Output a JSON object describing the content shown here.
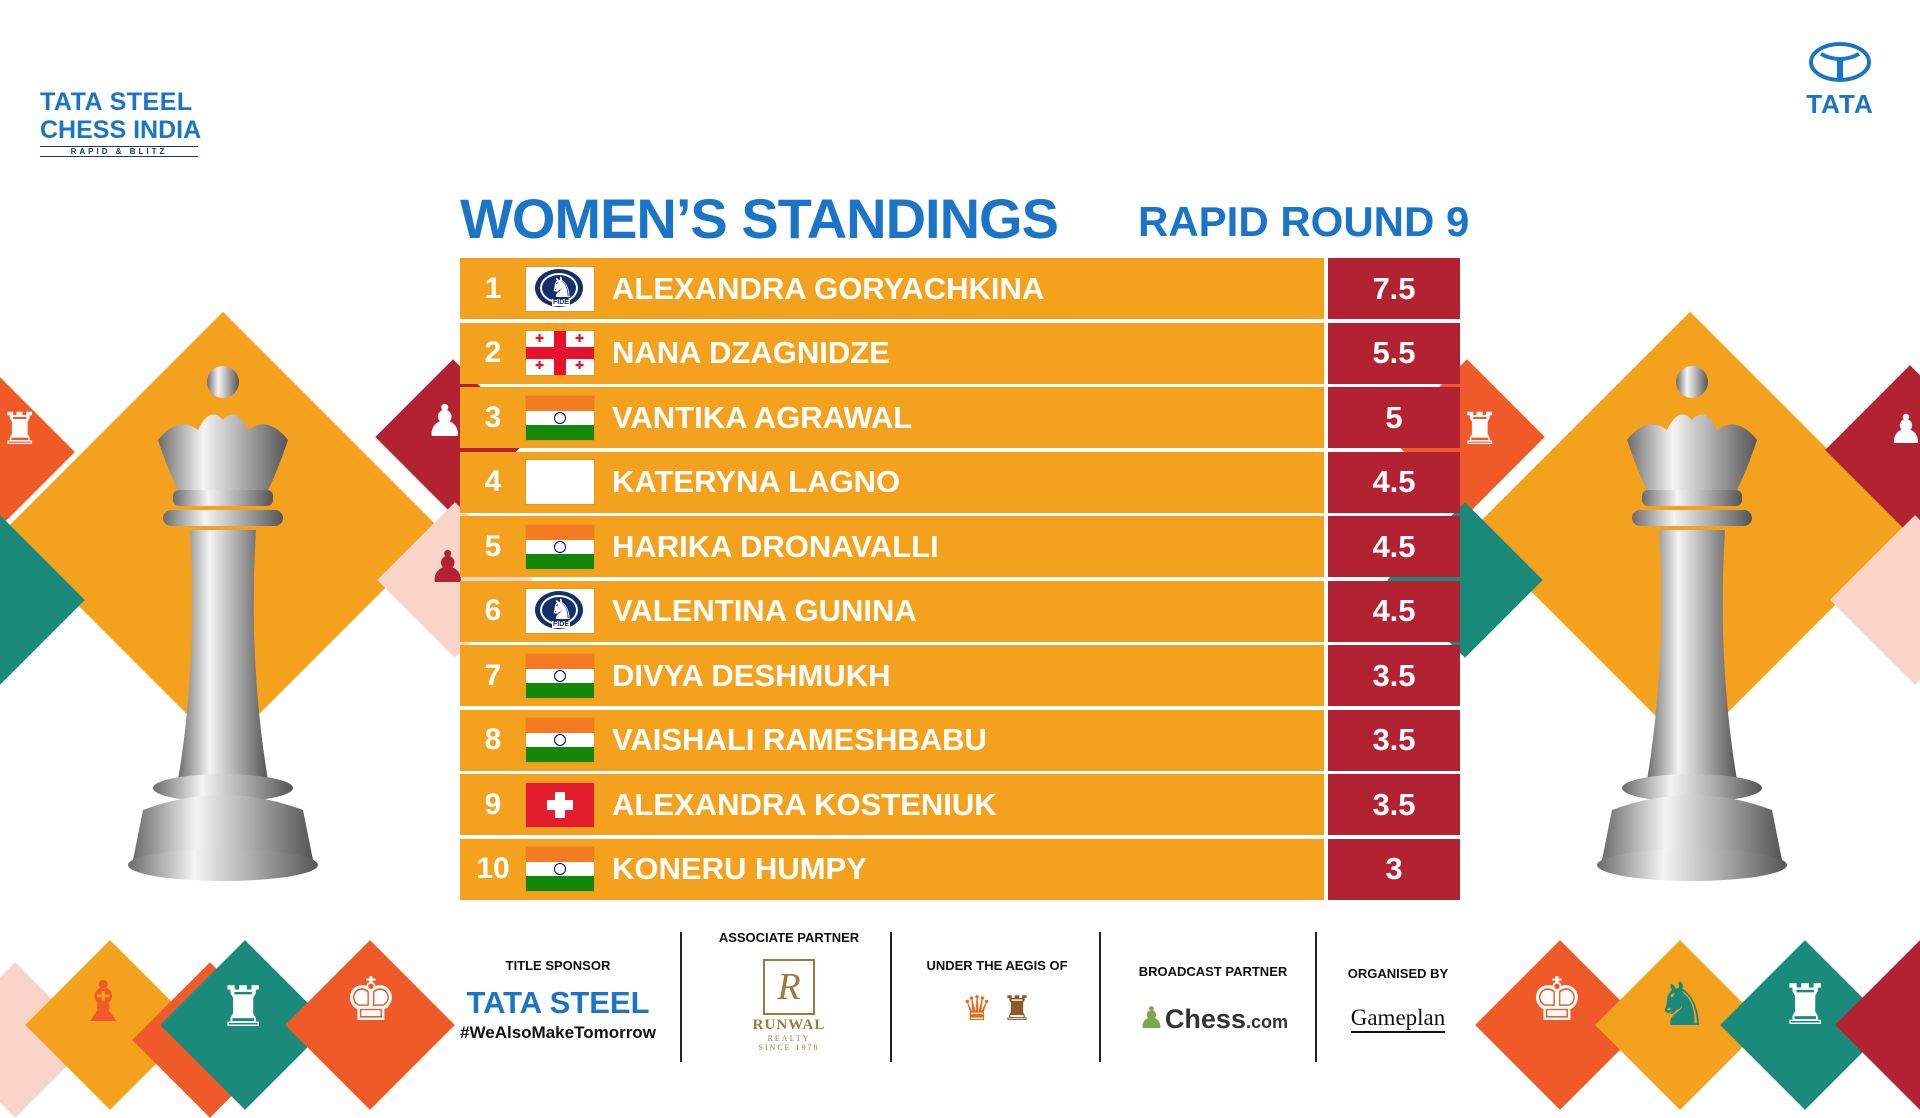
{
  "event_logo": {
    "line1": "TATA STEEL",
    "line2": "CHESS INDIA",
    "line3": "RAPID & BLITZ"
  },
  "tata_logo": {
    "word": "TATA"
  },
  "header": {
    "title": "WOMEN’S STANDINGS",
    "round": "RAPID ROUND 9"
  },
  "colors": {
    "blue": "#1a75c9",
    "row_orange": "#f4a21e",
    "score_red": "#b22232"
  },
  "standings": [
    {
      "rank": "1",
      "flag": "fide-icon",
      "name": "ALEXANDRA GORYACHKINA",
      "score": "7.5"
    },
    {
      "rank": "2",
      "flag": "georgia-flag-icon",
      "name": "NANA DZAGNIDZE",
      "score": "5.5"
    },
    {
      "rank": "3",
      "flag": "india-flag-icon",
      "name": "VANTIKA AGRAWAL",
      "score": "5"
    },
    {
      "rank": "4",
      "flag": "blank-flag-icon",
      "name": "KATERYNA LAGNO",
      "score": "4.5"
    },
    {
      "rank": "5",
      "flag": "india-flag-icon",
      "name": "HARIKA DRONAVALLI",
      "score": "4.5"
    },
    {
      "rank": "6",
      "flag": "fide-icon",
      "name": "VALENTINA GUNINA",
      "score": "4.5"
    },
    {
      "rank": "7",
      "flag": "india-flag-icon",
      "name": "DIVYA DESHMUKH",
      "score": "3.5"
    },
    {
      "rank": "8",
      "flag": "india-flag-icon",
      "name": "VAISHALI RAMESHBABU",
      "score": "3.5"
    },
    {
      "rank": "9",
      "flag": "switzerland-flag-icon",
      "name": "ALEXANDRA KOSTENIUK",
      "score": "3.5"
    },
    {
      "rank": "10",
      "flag": "india-flag-icon",
      "name": "KONERU HUMPY",
      "score": "3"
    }
  ],
  "fide_text": "FIDE",
  "sponsors": {
    "title_label": "TITLE SPONSOR",
    "title_name": "TATA STEEL",
    "title_tagline": "#WeAlsoMakeTomorrow",
    "associate_label": "ASSOCIATE PARTNER",
    "associate_name": "RUNWAL",
    "associate_sub": "REALTY",
    "associate_since": "SINCE 1978",
    "aegis_label": "UNDER THE AEGIS OF",
    "broadcast_label": "BROADCAST PARTNER",
    "broadcast_name": "Chess",
    "broadcast_suffix": ".com",
    "organiser_label": "ORGANISED BY",
    "organiser_name": "Gameplan"
  }
}
